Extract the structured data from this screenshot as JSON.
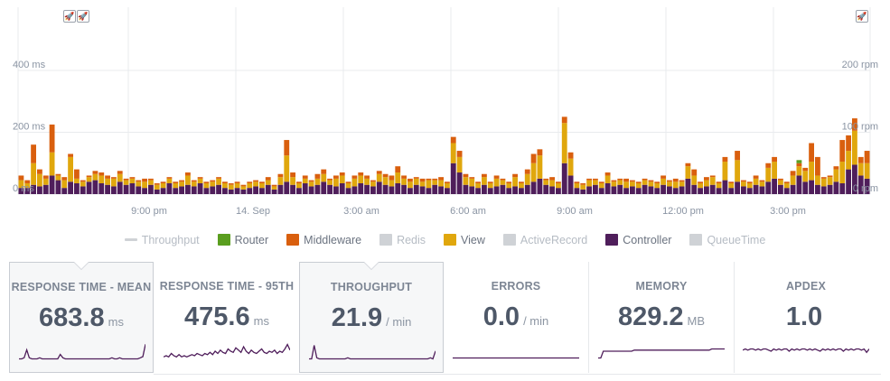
{
  "colors": {
    "controller": "#4f1e5b",
    "view": "#e0a70d",
    "middleware": "#d95f0e",
    "router": "#5a9e1f",
    "disabled": "#cfd2d6",
    "throughput": "#cfd2d6",
    "spark": "#4f1e5b"
  },
  "chart_data": {
    "type": "bar",
    "stacked": true,
    "left_axis": {
      "unit": "ms",
      "ticks": [
        "0 ms",
        "200 ms",
        "400 ms"
      ],
      "ylim": [
        0,
        550
      ]
    },
    "right_axis": {
      "unit": "rpm",
      "ticks": [
        "0 rpm",
        "100 rpm",
        "200 rpm"
      ],
      "ylim": [
        0,
        275
      ]
    },
    "x_tick_labels": [
      "9:00 pm",
      "14. Sep",
      "3:00 am",
      "6:00 am",
      "9:00 am",
      "12:00 pm",
      "3:00 pm"
    ],
    "series": [
      {
        "name": "Controller",
        "values": [
          20,
          20,
          30,
          25,
          30,
          60,
          45,
          20,
          40,
          35,
          25,
          40,
          45,
          35,
          30,
          25,
          40,
          30,
          35,
          25,
          20,
          30,
          15,
          20,
          35,
          20,
          25,
          30,
          25,
          35,
          20,
          25,
          30,
          20,
          15,
          20,
          15,
          20,
          25,
          20,
          30,
          15,
          30,
          40,
          30,
          20,
          35,
          25,
          30,
          40,
          30,
          25,
          35,
          20,
          25,
          35,
          30,
          25,
          40,
          30,
          25,
          35,
          30,
          20,
          30,
          25,
          20,
          30,
          25,
          20,
          100,
          70,
          30,
          25,
          20,
          30,
          20,
          25,
          30,
          20,
          25,
          20,
          30,
          40,
          50,
          30,
          25,
          20,
          100,
          60,
          20,
          15,
          25,
          30,
          20,
          35,
          25,
          30,
          20,
          25,
          20,
          30,
          25,
          20,
          30,
          25,
          20,
          25,
          50,
          30,
          20,
          25,
          30,
          20,
          45,
          20,
          40,
          25,
          20,
          30,
          25,
          40,
          50,
          30,
          20,
          30,
          60,
          40,
          45,
          30,
          25,
          30,
          40,
          35,
          80,
          95,
          60,
          50
        ]
      },
      {
        "name": "View",
        "values": [
          25,
          15,
          70,
          40,
          20,
          75,
          15,
          25,
          80,
          15,
          15,
          15,
          20,
          25,
          20,
          25,
          25,
          15,
          15,
          15,
          20,
          15,
          15,
          15,
          15,
          15,
          15,
          30,
          15,
          15,
          15,
          15,
          20,
          15,
          15,
          15,
          10,
          15,
          15,
          15,
          15,
          10,
          25,
          85,
          25,
          15,
          15,
          15,
          20,
          25,
          15,
          25,
          25,
          15,
          25,
          25,
          20,
          15,
          25,
          25,
          20,
          35,
          20,
          20,
          20,
          15,
          25,
          15,
          20,
          15,
          65,
          50,
          25,
          25,
          15,
          25,
          15,
          25,
          15,
          15,
          30,
          15,
          35,
          60,
          75,
          15,
          20,
          15,
          130,
          55,
          15,
          15,
          20,
          15,
          15,
          25,
          15,
          15,
          20,
          15,
          15,
          15,
          15,
          15,
          20,
          15,
          20,
          15,
          40,
          30,
          15,
          20,
          25,
          15,
          60,
          15,
          70,
          15,
          15,
          20,
          15,
          45,
          55,
          15,
          15,
          30,
          30,
          35,
          60,
          30,
          25,
          25,
          40,
          70,
          60,
          110,
          40,
          50
        ]
      },
      {
        "name": "Middleware",
        "values": [
          15,
          10,
          60,
          15,
          10,
          90,
          5,
          10,
          10,
          30,
          5,
          5,
          10,
          10,
          10,
          5,
          10,
          5,
          5,
          5,
          10,
          5,
          5,
          5,
          5,
          5,
          5,
          10,
          5,
          5,
          5,
          5,
          5,
          5,
          5,
          5,
          5,
          5,
          5,
          5,
          10,
          5,
          10,
          50,
          15,
          5,
          10,
          5,
          15,
          15,
          5,
          10,
          10,
          5,
          10,
          10,
          10,
          5,
          10,
          10,
          15,
          20,
          10,
          10,
          5,
          10,
          5,
          5,
          10,
          5,
          20,
          20,
          10,
          5,
          5,
          10,
          5,
          10,
          5,
          5,
          10,
          5,
          15,
          30,
          20,
          5,
          10,
          5,
          20,
          20,
          5,
          5,
          5,
          5,
          5,
          10,
          5,
          5,
          10,
          5,
          5,
          5,
          5,
          5,
          10,
          5,
          10,
          5,
          10,
          20,
          5,
          10,
          5,
          5,
          15,
          5,
          30,
          5,
          5,
          10,
          5,
          15,
          15,
          5,
          5,
          15,
          10,
          10,
          60,
          60,
          5,
          5,
          10,
          70,
          50,
          40,
          20,
          40
        ]
      },
      {
        "name": "Router",
        "values": [
          0,
          0,
          0,
          0,
          0,
          0,
          0,
          0,
          0,
          0,
          0,
          0,
          0,
          0,
          0,
          0,
          0,
          0,
          0,
          0,
          0,
          0,
          0,
          0,
          0,
          0,
          0,
          0,
          0,
          0,
          0,
          0,
          0,
          0,
          0,
          0,
          0,
          0,
          0,
          0,
          0,
          0,
          0,
          0,
          0,
          0,
          0,
          0,
          0,
          0,
          0,
          0,
          0,
          0,
          0,
          0,
          0,
          0,
          0,
          0,
          0,
          0,
          0,
          0,
          0,
          0,
          0,
          0,
          0,
          0,
          0,
          0,
          0,
          0,
          0,
          0,
          0,
          0,
          0,
          0,
          0,
          0,
          0,
          0,
          0,
          0,
          0,
          0,
          0,
          0,
          0,
          0,
          0,
          0,
          0,
          0,
          0,
          0,
          0,
          0,
          0,
          0,
          0,
          0,
          0,
          0,
          0,
          0,
          0,
          0,
          0,
          0,
          0,
          0,
          0,
          0,
          0,
          0,
          0,
          0,
          0,
          0,
          0,
          0,
          0,
          0,
          10,
          0,
          0,
          0,
          0,
          0,
          0,
          0,
          0,
          0,
          0,
          0
        ]
      }
    ]
  },
  "legend": [
    {
      "name": "Throughput",
      "color_key": "throughput",
      "enabled": false,
      "style": "line"
    },
    {
      "name": "Router",
      "color_key": "router",
      "enabled": true,
      "style": "box"
    },
    {
      "name": "Middleware",
      "color_key": "middleware",
      "enabled": true,
      "style": "box"
    },
    {
      "name": "Redis",
      "color_key": "disabled",
      "enabled": false,
      "style": "box"
    },
    {
      "name": "View",
      "color_key": "view",
      "enabled": true,
      "style": "box"
    },
    {
      "name": "ActiveRecord",
      "color_key": "disabled",
      "enabled": false,
      "style": "box"
    },
    {
      "name": "Controller",
      "color_key": "controller",
      "enabled": true,
      "style": "box"
    },
    {
      "name": "QueueTime",
      "color_key": "disabled",
      "enabled": false,
      "style": "box"
    }
  ],
  "deploy_markers": [
    "rocket-icon",
    "rocket-icon",
    "rocket-icon"
  ],
  "metrics": {
    "response_mean": {
      "title": "RESPONSE TIME - MEAN",
      "value": "683.8",
      "unit": "ms",
      "spark": [
        2,
        2,
        3,
        10,
        3,
        2,
        2,
        2,
        3,
        2,
        2,
        2,
        2,
        2,
        2,
        2,
        6,
        3,
        2,
        2,
        2,
        2,
        2,
        2,
        2,
        2,
        2,
        2,
        2,
        2,
        2,
        2,
        2,
        2,
        2,
        2,
        3,
        2,
        2,
        3,
        2,
        2,
        2,
        2,
        2,
        2,
        2,
        3,
        4,
        15
      ]
    },
    "response_95": {
      "title": "RESPONSE TIME - 95TH",
      "value": "475.6",
      "unit": "ms",
      "spark": [
        3,
        4,
        3,
        6,
        4,
        3,
        5,
        3,
        4,
        3,
        4,
        5,
        4,
        6,
        5,
        4,
        6,
        5,
        7,
        5,
        8,
        6,
        9,
        7,
        6,
        10,
        8,
        7,
        11,
        9,
        7,
        12,
        8,
        6,
        9,
        7,
        6,
        8,
        10,
        7,
        6,
        8,
        7,
        9,
        6,
        8,
        7,
        10,
        14,
        9
      ]
    },
    "throughput": {
      "title": "THROUGHPUT",
      "value": "21.9",
      "unit": "/ min",
      "spark": [
        2,
        2,
        14,
        3,
        2,
        2,
        2,
        2,
        2,
        2,
        2,
        2,
        2,
        2,
        2,
        3,
        2,
        2,
        2,
        2,
        2,
        2,
        2,
        2,
        2,
        2,
        2,
        2,
        2,
        2,
        2,
        2,
        2,
        2,
        2,
        2,
        2,
        2,
        2,
        2,
        2,
        2,
        2,
        2,
        2,
        2,
        2,
        3,
        2,
        9
      ]
    },
    "errors": {
      "title": "ERRORS",
      "value": "0.0",
      "unit": "/ min",
      "spark": [
        2,
        2,
        2,
        2,
        2,
        2,
        2,
        2,
        2,
        2,
        2,
        2,
        2,
        2,
        2,
        2,
        2,
        2,
        2,
        2,
        2,
        2,
        2,
        2,
        2,
        2,
        2,
        2,
        2,
        2,
        2,
        2,
        2,
        2,
        2,
        2,
        2,
        2,
        2,
        2,
        2,
        2,
        2,
        2,
        2,
        2,
        2,
        2,
        2,
        2
      ]
    },
    "memory": {
      "title": "MEMORY",
      "value": "829.2",
      "unit": "MB",
      "spark": [
        2,
        2,
        8,
        8,
        8,
        8,
        8,
        8,
        8,
        8,
        8,
        8,
        8,
        8,
        9,
        9,
        9,
        9,
        9,
        9,
        9,
        9,
        9,
        9,
        9,
        9,
        9,
        9,
        9,
        9,
        9,
        9,
        9,
        9,
        9,
        9,
        9,
        9,
        9,
        9,
        9,
        9,
        9,
        9,
        10,
        10,
        10,
        10,
        10,
        10
      ]
    },
    "apdex": {
      "title": "APDEX",
      "value": "1.0",
      "unit": "",
      "spark": [
        9,
        10,
        9,
        10,
        10,
        9,
        10,
        9,
        10,
        10,
        9,
        8,
        10,
        9,
        10,
        9,
        10,
        10,
        8,
        10,
        9,
        10,
        9,
        10,
        10,
        9,
        10,
        9,
        10,
        9,
        8,
        10,
        9,
        10,
        9,
        10,
        9,
        10,
        10,
        8,
        10,
        9,
        10,
        9,
        10,
        10,
        9,
        10,
        7,
        10
      ]
    }
  }
}
